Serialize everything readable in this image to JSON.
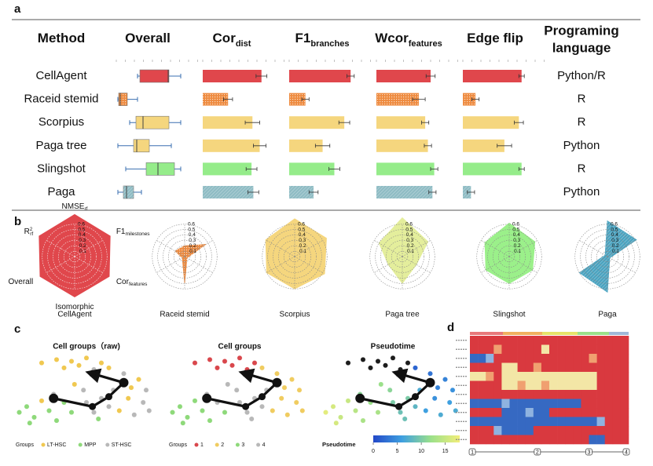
{
  "panel_labels": [
    "a",
    "b",
    "c",
    "d"
  ],
  "table": {
    "columns": [
      {
        "main": "Method"
      },
      {
        "main": "Overall"
      },
      {
        "main": "Cor",
        "sub": "dist"
      },
      {
        "main": "F1",
        "sub": "branches"
      },
      {
        "main": "Wcor",
        "sub": "features"
      },
      {
        "main": "Edge flip"
      },
      {
        "lines": [
          "Programing",
          "language"
        ]
      }
    ],
    "overall_xlim": [
      0,
      1
    ],
    "metric_xlim": [
      0,
      1
    ],
    "rows": [
      {
        "method": "CellAgent",
        "language": "Python/R",
        "color": "#e0474c",
        "overall": [
          0.27,
          0.3,
          0.66,
          0.67,
          0.82
        ],
        "metrics": [
          0.65,
          0.68,
          0.6,
          0.65
        ],
        "errors": [
          0.06,
          0.04,
          0.05,
          0.03
        ]
      },
      {
        "method": "Raceid stemid",
        "language": "R",
        "color": "#ee8a3e",
        "pattern": "dots",
        "overall": [
          0.02,
          0.03,
          0.05,
          0.14,
          0.27
        ],
        "metrics": [
          0.28,
          0.18,
          0.47,
          0.14
        ],
        "errors": [
          0.05,
          0.04,
          0.07,
          0.04
        ]
      },
      {
        "method": "Scorpius",
        "language": "R",
        "color": "#f5d67e",
        "overall": [
          0.17,
          0.25,
          0.34,
          0.67,
          0.82
        ],
        "metrics": [
          0.55,
          0.61,
          0.54,
          0.62
        ],
        "errors": [
          0.08,
          0.06,
          0.04,
          0.05
        ]
      },
      {
        "method": "Paga tree",
        "language": "Python",
        "color": "#f5d67e",
        "overall": [
          0.02,
          0.22,
          0.26,
          0.42,
          0.7
        ],
        "metrics": [
          0.63,
          0.37,
          0.57,
          0.46
        ],
        "errors": [
          0.07,
          0.08,
          0.04,
          0.08
        ]
      },
      {
        "method": "Slingshot",
        "language": "R",
        "color": "#95ec8a",
        "overall": [
          0.12,
          0.38,
          0.53,
          0.74,
          0.82
        ],
        "metrics": [
          0.54,
          0.5,
          0.64,
          0.65
        ],
        "errors": [
          0.06,
          0.06,
          0.04,
          0.03
        ]
      },
      {
        "method": "Paga",
        "language": "Python",
        "color": "#8fbcc4",
        "pattern": "hatch",
        "overall": [
          0.02,
          0.09,
          0.13,
          0.22,
          0.32
        ],
        "metrics": [
          0.56,
          0.27,
          0.62,
          0.09
        ],
        "errors": [
          0.06,
          0.05,
          0.04,
          0.04
        ]
      }
    ]
  },
  "radar": {
    "axes": [
      {
        "main": "NMSE",
        "sub": "rf"
      },
      {
        "main": "F1",
        "sub": "milestones"
      },
      {
        "main": "Cor",
        "sub": "features"
      },
      {
        "main": "Isomorphic"
      },
      {
        "main": "Overall"
      },
      {
        "main": "R",
        "sup": "2",
        "sub": "rf"
      }
    ],
    "rlim": [
      0,
      0.8
    ],
    "rticks": [
      0.6,
      0.5,
      0.4,
      0.3,
      0.2,
      0.1
    ],
    "charts": [
      {
        "name": "CellAgent",
        "color": "#e0474c",
        "values": [
          0.78,
          0.76,
          0.74,
          0.75,
          0.74,
          0.76
        ]
      },
      {
        "name": "Raceid stemid",
        "color": "#ee8a3e",
        "pattern": "dots",
        "values": [
          0.2,
          0.45,
          0.05,
          0.5,
          0.05,
          0.2
        ]
      },
      {
        "name": "Scorpius",
        "color": "#f5d67e",
        "values": [
          0.7,
          0.68,
          0.64,
          0.6,
          0.6,
          0.62
        ]
      },
      {
        "name": "Paga tree",
        "color": "#e4ee9c",
        "values": [
          0.72,
          0.55,
          0.3,
          0.5,
          0.3,
          0.5
        ]
      },
      {
        "name": "Slingshot",
        "color": "#9bf08a",
        "values": [
          0.62,
          0.55,
          0.5,
          0.5,
          0.5,
          0.52
        ]
      },
      {
        "name": "Paga",
        "color": "#4aa3c0",
        "pattern": "hatch",
        "values": [
          0.66,
          0.62,
          0.05,
          0.66,
          0.6,
          0.05
        ]
      }
    ]
  },
  "trajectory": {
    "xlim": [
      0,
      100
    ],
    "ylim": [
      0,
      100
    ],
    "cells": {
      "x": [
        20,
        30,
        40,
        50,
        60,
        35,
        55,
        45,
        65,
        75,
        85,
        90,
        80,
        88,
        78,
        92,
        82,
        72,
        10,
        5,
        15,
        25,
        30,
        20,
        35,
        40,
        12,
        28,
        50,
        55,
        60,
        65,
        48,
        58,
        68,
        42
      ],
      "y": [
        88,
        92,
        90,
        94,
        88,
        82,
        80,
        85,
        82,
        75,
        68,
        55,
        58,
        40,
        45,
        30,
        25,
        30,
        35,
        28,
        22,
        30,
        18,
        42,
        40,
        28,
        15,
        50,
        40,
        28,
        45,
        35,
        55,
        20,
        55,
        62
      ],
      "group": [
        "LT-HSC",
        "LT-HSC",
        "LT-HSC",
        "LT-HSC",
        "LT-HSC",
        "LT-HSC",
        "ST-HSC",
        "LT-HSC",
        "LT-HSC",
        "ST-HSC",
        "LT-HSC",
        "ST-HSC",
        "LT-HSC",
        "ST-HSC",
        "LT-HSC",
        "ST-HSC",
        "ST-HSC",
        "LT-HSC",
        "MPP",
        "MPP",
        "MPP",
        "MPP",
        "MPP",
        "LT-HSC",
        "MPP",
        "MPP",
        "MPP",
        "ST-HSC",
        "ST-HSC",
        "ST-HSC",
        "ST-HSC",
        "ST-HSC",
        "ST-HSC",
        "MPP",
        "ST-HSC",
        "LT-HSC"
      ],
      "cluster": [
        "1",
        "1",
        "1",
        "1",
        "1",
        "1",
        "1",
        "1",
        "2",
        "2",
        "2",
        "2",
        "2",
        "2",
        "2",
        "2",
        "2",
        "2",
        "3",
        "3",
        "3",
        "3",
        "3",
        "3",
        "4",
        "3",
        "3",
        "4",
        "4",
        "4",
        "4",
        "4",
        "4",
        "4",
        "4",
        "4"
      ],
      "pseudotime": [
        null,
        null,
        null,
        null,
        null,
        null,
        null,
        null,
        2,
        3,
        4,
        5,
        4,
        6,
        5,
        7,
        7,
        6,
        16,
        17,
        15,
        14,
        13,
        15,
        12,
        13,
        16,
        11,
        10,
        9,
        10,
        8,
        11,
        9,
        7,
        12
      ]
    },
    "nodes": {
      "x": [
        28,
        54,
        65,
        75,
        54
      ],
      "y": [
        45,
        35,
        47,
        64,
        75
      ]
    },
    "plots": [
      {
        "title": "Cell groups（raw)",
        "legend_title": "Groups",
        "items": [
          "LT-HSC",
          "MPP",
          "ST-HSC"
        ],
        "colors": [
          "#f0c850",
          "#8ed97a",
          "#b8b8b8"
        ]
      },
      {
        "title": "Cell groups",
        "legend_title": "Groups",
        "items": [
          "1",
          "2",
          "3",
          "4"
        ],
        "colors": [
          "#d9474c",
          "#f0cc60",
          "#8ed97a",
          "#b8b8b8"
        ]
      },
      {
        "title": "Pseudotime",
        "legend_title": "Pseudotime",
        "clim": [
          0,
          18
        ],
        "cticks": [
          0,
          5,
          10,
          15
        ],
        "colorscale": [
          "#2348c8",
          "#3fa0e0",
          "#9be08a",
          "#f2ee7a"
        ],
        "na_color": "#1c1c1c"
      }
    ]
  },
  "heatmap": {
    "colors": [
      "#3669c2",
      "#8fb3e0",
      "#f3e6a6",
      "#f0a070",
      "#d9393f"
    ],
    "vmin": -2,
    "xlim": [
      0,
      20
    ],
    "xticks": [
      {
        "value": 0.3,
        "label": "1"
      },
      {
        "value": 8.5,
        "label": "2"
      },
      {
        "value": 15,
        "label": "3"
      },
      {
        "value": 19.7,
        "label": "4"
      }
    ],
    "values": [
      [
        2,
        2,
        2,
        2,
        2,
        2,
        2,
        2,
        2,
        2,
        2,
        2,
        2,
        2,
        2,
        2,
        2,
        2,
        2,
        2
      ],
      [
        2,
        2,
        2,
        1,
        2,
        2,
        2,
        2,
        2,
        0,
        2,
        2,
        2,
        2,
        2,
        2,
        2,
        2,
        2,
        2
      ],
      [
        -2,
        -2,
        -1,
        2,
        2,
        2,
        2,
        2,
        2,
        2,
        2,
        2,
        2,
        2,
        2,
        1,
        2,
        2,
        2,
        2
      ],
      [
        2,
        2,
        2,
        2,
        0,
        0,
        2,
        2,
        1,
        2,
        2,
        2,
        2,
        2,
        2,
        2,
        2,
        2,
        2,
        2
      ],
      [
        0,
        0,
        1,
        2,
        0,
        0,
        0,
        0,
        0,
        0,
        0,
        0,
        0,
        0,
        0,
        0,
        2,
        2,
        2,
        2
      ],
      [
        2,
        2,
        2,
        2,
        0,
        0,
        1,
        0,
        0,
        1,
        0,
        0,
        0,
        0,
        0,
        0,
        2,
        2,
        2,
        2
      ],
      [
        2,
        2,
        2,
        2,
        2,
        2,
        2,
        2,
        2,
        2,
        2,
        2,
        2,
        2,
        2,
        2,
        2,
        2,
        2,
        2
      ],
      [
        -2,
        -2,
        -2,
        -2,
        -1,
        -2,
        -2,
        -2,
        -2,
        -2,
        -2,
        -2,
        -2,
        -2,
        2,
        2,
        2,
        2,
        2,
        2
      ],
      [
        2,
        2,
        2,
        2,
        -2,
        -2,
        -2,
        -1,
        -2,
        -2,
        2,
        2,
        2,
        2,
        2,
        2,
        2,
        2,
        2,
        2
      ],
      [
        -2,
        -2,
        -2,
        -2,
        -2,
        -2,
        -2,
        -2,
        -2,
        -2,
        -2,
        -2,
        -2,
        -2,
        -2,
        -2,
        -1,
        2,
        2,
        2
      ],
      [
        2,
        2,
        2,
        -1,
        -2,
        -2,
        -2,
        -2,
        2,
        2,
        2,
        2,
        2,
        2,
        2,
        2,
        2,
        2,
        2,
        2
      ],
      [
        2,
        2,
        2,
        2,
        2,
        2,
        2,
        2,
        2,
        2,
        2,
        2,
        2,
        2,
        2,
        -2,
        -2,
        2,
        2,
        2
      ]
    ]
  }
}
